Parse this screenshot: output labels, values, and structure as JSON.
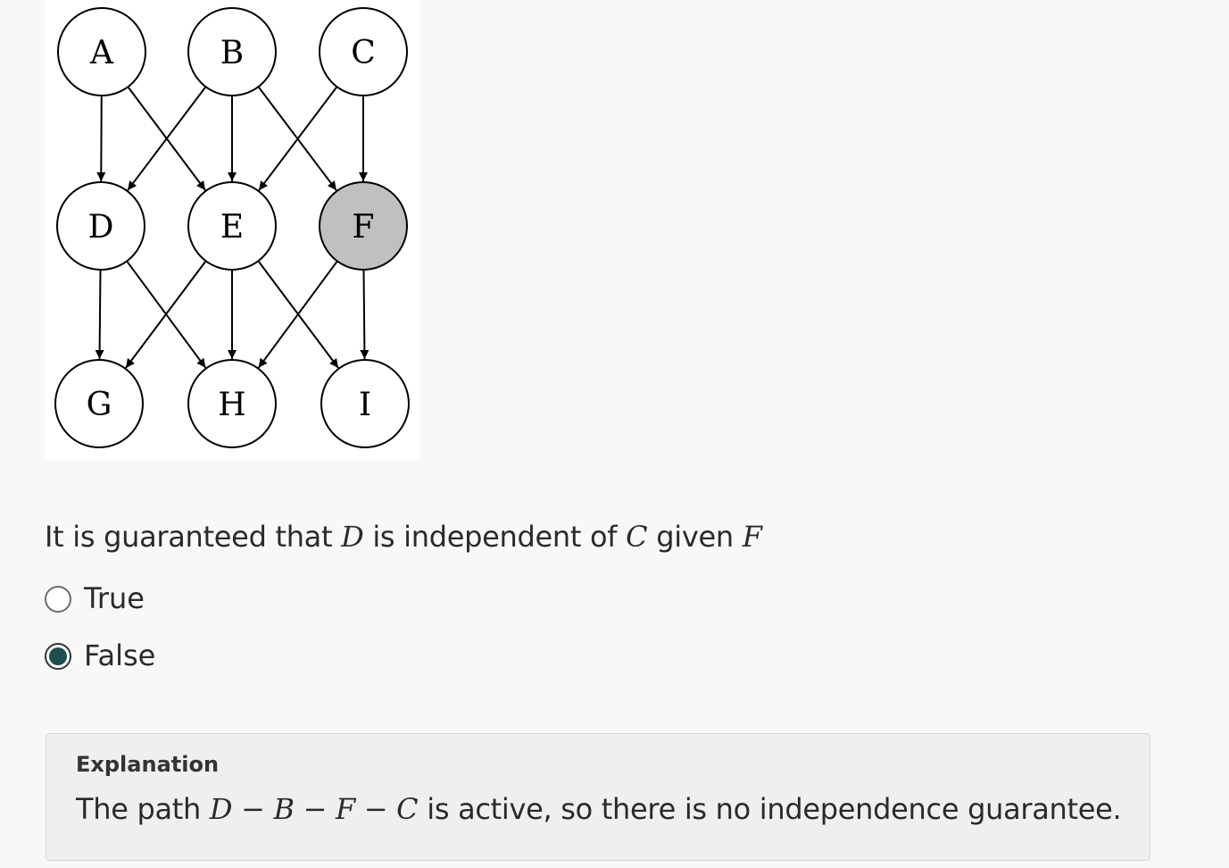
{
  "graph": {
    "nodes": [
      {
        "id": "A",
        "label": "A",
        "observed": false
      },
      {
        "id": "B",
        "label": "B",
        "observed": false
      },
      {
        "id": "C",
        "label": "C",
        "observed": false
      },
      {
        "id": "D",
        "label": "D",
        "observed": false
      },
      {
        "id": "E",
        "label": "E",
        "observed": false
      },
      {
        "id": "F",
        "label": "F",
        "observed": true
      },
      {
        "id": "G",
        "label": "G",
        "observed": false
      },
      {
        "id": "H",
        "label": "H",
        "observed": false
      },
      {
        "id": "I",
        "label": "I",
        "observed": false
      }
    ],
    "edges": [
      [
        "A",
        "D"
      ],
      [
        "A",
        "E"
      ],
      [
        "B",
        "D"
      ],
      [
        "B",
        "E"
      ],
      [
        "B",
        "F"
      ],
      [
        "C",
        "E"
      ],
      [
        "C",
        "F"
      ],
      [
        "D",
        "G"
      ],
      [
        "D",
        "H"
      ],
      [
        "E",
        "G"
      ],
      [
        "E",
        "H"
      ],
      [
        "E",
        "I"
      ],
      [
        "F",
        "H"
      ],
      [
        "F",
        "I"
      ]
    ],
    "colors": {
      "observed_fill": "#c0c0c0",
      "node_fill": "#ffffff",
      "stroke": "#000000"
    }
  },
  "question": {
    "prefix": "It is guaranteed that ",
    "var1": "D",
    "middle1": " is independent of ",
    "var2": "C",
    "middle2": " given ",
    "var3": "F"
  },
  "options": [
    {
      "label": "True",
      "selected": false
    },
    {
      "label": "False",
      "selected": true
    }
  ],
  "explanation": {
    "title": "Explanation",
    "prefix": "The path ",
    "path_math": "D − B − F − C",
    "suffix": " is active, so there is no independence guarantee."
  },
  "colors": {
    "accent": "#1c4d4f"
  }
}
